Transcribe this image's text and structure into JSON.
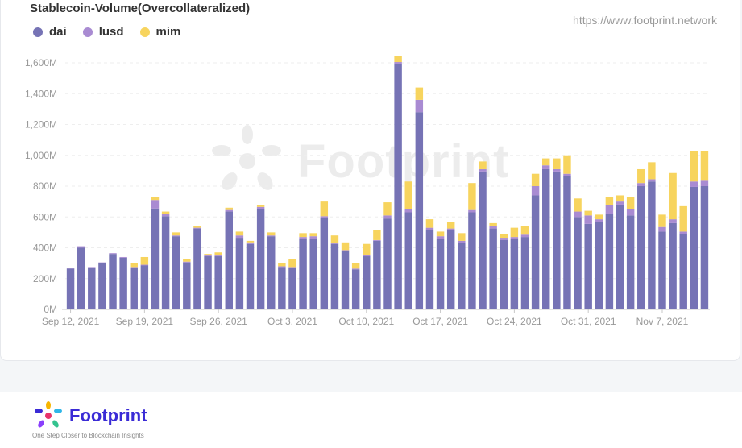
{
  "header": {
    "title": "Stablecoin-Volume(Overcollateralized)",
    "url": "https://www.footprint.network"
  },
  "watermark": {
    "text": "Footprint"
  },
  "footer": {
    "brand": "Footprint",
    "tagline": "One Step Closer to Blockchain Insights"
  },
  "colors": {
    "dai": "#7673b5",
    "lusd": "#a98bd2",
    "mim": "#f7d45e"
  },
  "chart_data": {
    "type": "bar",
    "stacked": true,
    "title": "Stablecoin-Volume(Overcollateralized)",
    "xlabel": "",
    "ylabel": "",
    "ylim": [
      0,
      1600
    ],
    "yticks": [
      "0M",
      "200M",
      "400M",
      "600M",
      "800M",
      "1,000M",
      "1,200M",
      "1,400M",
      "1,600M"
    ],
    "xticks": [
      "Sep 12, 2021",
      "Sep 19, 2021",
      "Sep 26, 2021",
      "Oct 3, 2021",
      "Oct 10, 2021",
      "Oct 17, 2021",
      "Oct 24, 2021",
      "Oct 31, 2021",
      "Nov 7, 2021"
    ],
    "grid": true,
    "legend_position": "top-left",
    "unit": "M",
    "categories": [
      "2021-09-12",
      "2021-09-13",
      "2021-09-14",
      "2021-09-15",
      "2021-09-16",
      "2021-09-17",
      "2021-09-18",
      "2021-09-19",
      "2021-09-20",
      "2021-09-21",
      "2021-09-22",
      "2021-09-23",
      "2021-09-24",
      "2021-09-25",
      "2021-09-26",
      "2021-09-27",
      "2021-09-28",
      "2021-09-29",
      "2021-09-30",
      "2021-10-01",
      "2021-10-02",
      "2021-10-03",
      "2021-10-04",
      "2021-10-05",
      "2021-10-06",
      "2021-10-07",
      "2021-10-08",
      "2021-10-09",
      "2021-10-10",
      "2021-10-11",
      "2021-10-12",
      "2021-10-13",
      "2021-10-14",
      "2021-10-15",
      "2021-10-16",
      "2021-10-17",
      "2021-10-18",
      "2021-10-19",
      "2021-10-20",
      "2021-10-21",
      "2021-10-22",
      "2021-10-23",
      "2021-10-24",
      "2021-10-25",
      "2021-10-26",
      "2021-10-27",
      "2021-10-28",
      "2021-10-29",
      "2021-10-30",
      "2021-10-31",
      "2021-11-01",
      "2021-11-02",
      "2021-11-03",
      "2021-11-04",
      "2021-11-05",
      "2021-11-06",
      "2021-11-07",
      "2021-11-08",
      "2021-11-09",
      "2021-11-10",
      "2021-11-11"
    ],
    "series": [
      {
        "name": "dai",
        "values": [
          265,
          400,
          270,
          300,
          360,
          335,
          270,
          285,
          655,
          605,
          475,
          305,
          525,
          345,
          345,
          635,
          465,
          425,
          650,
          475,
          275,
          270,
          460,
          460,
          595,
          425,
          380,
          260,
          345,
          445,
          590,
          1595,
          630,
          1280,
          515,
          460,
          515,
          430,
          630,
          895,
          525,
          450,
          460,
          470,
          740,
          910,
          895,
          865,
          600,
          555,
          565,
          620,
          680,
          610,
          800,
          830,
          505,
          560,
          490,
          795,
          800
        ],
        "colors_note": ""
      },
      {
        "name": "lusd",
        "values": [
          5,
          10,
          5,
          5,
          5,
          5,
          5,
          5,
          55,
          15,
          5,
          5,
          5,
          5,
          5,
          10,
          15,
          10,
          15,
          5,
          5,
          5,
          10,
          15,
          10,
          5,
          5,
          5,
          10,
          5,
          20,
          10,
          20,
          80,
          15,
          15,
          10,
          15,
          15,
          15,
          15,
          15,
          10,
          15,
          60,
          25,
          15,
          15,
          35,
          55,
          20,
          55,
          20,
          40,
          20,
          15,
          30,
          25,
          15,
          35,
          35
        ]
      },
      {
        "name": "mim",
        "values": [
          0,
          0,
          0,
          0,
          0,
          0,
          25,
          50,
          20,
          15,
          20,
          15,
          10,
          10,
          20,
          15,
          25,
          10,
          10,
          20,
          20,
          50,
          25,
          20,
          95,
          50,
          50,
          35,
          70,
          65,
          85,
          40,
          180,
          80,
          55,
          30,
          40,
          50,
          175,
          50,
          20,
          25,
          60,
          55,
          80,
          45,
          70,
          120,
          85,
          30,
          30,
          55,
          40,
          80,
          90,
          110,
          80,
          300,
          165,
          200,
          195
        ]
      }
    ]
  }
}
